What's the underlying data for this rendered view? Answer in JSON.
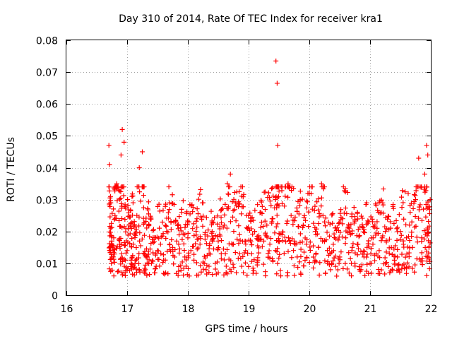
{
  "chart_data": {
    "type": "scatter",
    "title": "Day 310 of 2014, Rate Of TEC Index for receiver kra1",
    "xlabel": "GPS time / hours",
    "ylabel": "ROTI / TECUs",
    "xlim": [
      16,
      22
    ],
    "ylim": [
      0,
      0.08
    ],
    "x_ticks": [
      "16",
      "17",
      "18",
      "19",
      "20",
      "21",
      "22"
    ],
    "y_ticks": [
      "0",
      "0.01",
      "0.02",
      "0.03",
      "0.04",
      "0.05",
      "0.06",
      "0.07",
      "0.08"
    ],
    "grid": true,
    "marker": "+",
    "color": "#ff0000",
    "series": [
      {
        "name": "ROTI",
        "x": [
          16.7,
          16.71,
          16.72,
          16.73,
          16.75,
          16.78,
          16.8,
          16.83,
          16.86,
          16.88,
          16.9,
          16.92,
          16.95,
          16.97,
          17.0,
          17.03,
          17.06,
          17.08,
          17.1,
          17.13,
          17.16,
          17.2,
          17.25,
          17.28,
          17.3,
          17.33,
          17.36,
          17.4,
          17.45,
          17.5,
          17.55,
          17.6,
          17.65,
          17.7,
          17.75,
          17.8,
          17.85,
          17.9,
          17.95,
          18.0,
          18.05,
          18.1,
          18.15,
          18.2,
          18.25,
          18.3,
          18.35,
          18.4,
          18.45,
          18.5,
          18.55,
          18.6,
          18.65,
          18.7,
          18.75,
          18.8,
          18.85,
          18.9,
          18.95,
          19.0,
          19.05,
          19.1,
          19.15,
          19.2,
          19.25,
          19.3,
          19.35,
          19.4,
          19.45,
          19.47,
          19.48,
          19.5,
          19.55,
          19.6,
          19.65,
          19.7,
          19.75,
          19.8,
          19.85,
          19.9,
          19.95,
          20.0,
          20.05,
          20.1,
          20.15,
          20.2,
          20.25,
          20.3,
          20.35,
          20.4,
          20.45,
          20.5,
          20.55,
          20.6,
          20.65,
          20.7,
          20.75,
          20.8,
          20.85,
          20.9,
          20.95,
          21.0,
          21.05,
          21.1,
          21.15,
          21.2,
          21.25,
          21.3,
          21.35,
          21.4,
          21.45,
          21.5,
          21.55,
          21.6,
          21.65,
          21.7,
          21.75,
          21.8,
          21.85,
          21.9,
          21.93,
          21.95,
          21.97,
          21.99
        ],
        "y": [
          0.047,
          0.041,
          0.015,
          0.029,
          0.012,
          0.018,
          0.025,
          0.035,
          0.033,
          0.016,
          0.044,
          0.052,
          0.048,
          0.011,
          0.014,
          0.022,
          0.009,
          0.031,
          0.016,
          0.01,
          0.025,
          0.04,
          0.045,
          0.034,
          0.008,
          0.012,
          0.022,
          0.01,
          0.007,
          0.014,
          0.016,
          0.011,
          0.02,
          0.029,
          0.015,
          0.023,
          0.009,
          0.026,
          0.012,
          0.018,
          0.014,
          0.011,
          0.024,
          0.016,
          0.029,
          0.008,
          0.013,
          0.02,
          0.01,
          0.017,
          0.013,
          0.022,
          0.035,
          0.038,
          0.016,
          0.028,
          0.019,
          0.034,
          0.014,
          0.009,
          0.013,
          0.02,
          0.011,
          0.026,
          0.017,
          0.022,
          0.016,
          0.024,
          0.0735,
          0.0665,
          0.047,
          0.028,
          0.019,
          0.034,
          0.035,
          0.025,
          0.017,
          0.012,
          0.03,
          0.022,
          0.016,
          0.032,
          0.027,
          0.02,
          0.015,
          0.035,
          0.023,
          0.01,
          0.008,
          0.014,
          0.006,
          0.012,
          0.024,
          0.018,
          0.022,
          0.014,
          0.01,
          0.016,
          0.008,
          0.012,
          0.015,
          0.01,
          0.018,
          0.013,
          0.014,
          0.018,
          0.02,
          0.009,
          0.015,
          0.011,
          0.012,
          0.02,
          0.016,
          0.018,
          0.022,
          0.015,
          0.03,
          0.043,
          0.018,
          0.038,
          0.047,
          0.044,
          0.015,
          0.03
        ]
      }
    ]
  }
}
